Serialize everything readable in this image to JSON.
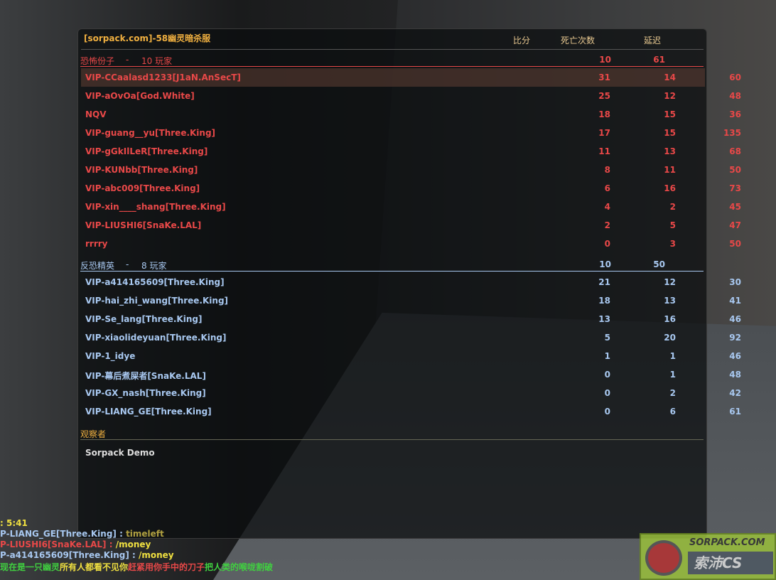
{
  "scoreboard": {
    "title": "[sorpack.com]-58幽灵暗杀服",
    "columns": [
      "比分",
      "死亡次数",
      "延迟"
    ],
    "terrorists": {
      "label": "恐怖份子",
      "sep": "-",
      "count": "10 玩家",
      "score": "10",
      "latency": "61",
      "color": "#e84848",
      "players": [
        [
          "VIP-CCaalasd1233[J1aN.AnSecT]",
          "31",
          "14",
          "60"
        ],
        [
          "VIP-aOvOa[God.White]",
          "25",
          "12",
          "48"
        ],
        [
          "NQV",
          "18",
          "15",
          "36"
        ],
        [
          "VIP-guang__yu[Three.King]",
          "17",
          "15",
          "135"
        ],
        [
          "VIP-gGkIlLeR[Three.King]",
          "11",
          "13",
          "68"
        ],
        [
          "VIP-KUNbb[Three.King]",
          "8",
          "11",
          "50"
        ],
        [
          "VIP-abc009[Three.King]",
          "6",
          "16",
          "73"
        ],
        [
          "VIP-xin____shang[Three.King]",
          "4",
          "2",
          "45"
        ],
        [
          "VIP-LIUSHI6[SnaKe.LAL]",
          "2",
          "5",
          "47"
        ],
        [
          "rrrry",
          "0",
          "3",
          "50"
        ]
      ]
    },
    "cts": {
      "label": "反恐精英",
      "sep": "-",
      "count": "8 玩家",
      "score": "10",
      "latency": "50",
      "color": "#a8c8f0",
      "players": [
        [
          "VIP-a414165609[Three.King]",
          "21",
          "12",
          "30"
        ],
        [
          "VIP-hai_zhi_wang[Three.King]",
          "18",
          "13",
          "41"
        ],
        [
          "VIP-Se_lang[Three.King]",
          "13",
          "16",
          "46"
        ],
        [
          "VIP-xiaolideyuan[Three.King]",
          "5",
          "20",
          "92"
        ],
        [
          "VIP-1_idye",
          "1",
          "1",
          "46"
        ],
        [
          "VIP-幕后煮屎者[SnaKe.LAL]",
          "0",
          "1",
          "48"
        ],
        [
          "VIP-GX_nash[Three.King]",
          "0",
          "2",
          "42"
        ],
        [
          "VIP-LIANG_GE[Three.King]",
          "0",
          "6",
          "61"
        ]
      ]
    },
    "spectators": {
      "label": "观察者",
      "players": [
        "Sorpack Demo"
      ]
    }
  },
  "chat": [
    {
      "parts": [
        [
          ": 5:41",
          "#f0e040"
        ]
      ]
    },
    {
      "parts": [
        [
          "P-LIANG_GE[Three.King] : ",
          "#a8c8f0"
        ],
        [
          " timeleft",
          "#b0a040"
        ]
      ]
    },
    {
      "parts": [
        [
          "P-LIUSHI6[SnaKe.LAL] : ",
          "#e84848"
        ],
        [
          " /money",
          "#f0e040"
        ]
      ]
    },
    {
      "parts": [
        [
          "P-a414165609[Three.King] : ",
          "#a8c8f0"
        ],
        [
          " /money",
          "#f0e040"
        ]
      ]
    },
    {
      "parts": [
        [
          "现在是一只幽灵",
          "#40d040"
        ],
        [
          "所有人都看不见你",
          "#f0e040"
        ],
        [
          "赶紧用你手中的刀子",
          "#e84848"
        ],
        [
          "把人类的喉咙割破",
          "#40d040"
        ]
      ]
    }
  ],
  "logo": {
    "text1": "SORPACK.COM",
    "text2": "索沛CS"
  }
}
